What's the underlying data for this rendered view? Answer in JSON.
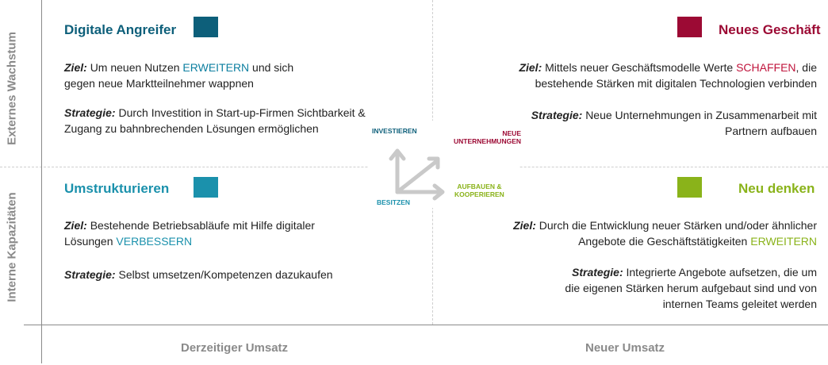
{
  "colors": {
    "teal_dark": "#0d5f7a",
    "red": "#9c0a34",
    "teal_light": "#1b91ac",
    "green": "#8ab31a",
    "axis_text": "#8a8a8a",
    "arrow": "#c9c9c9"
  },
  "axes": {
    "y_top": "Externes Wachstum",
    "y_bottom": "Interne Kapazitäten",
    "x_left": "Derzeitiger Umsatz",
    "x_right": "Neuer Umsatz"
  },
  "quadrants": {
    "top_left": {
      "title": "Digitale Angreifer",
      "goal_label": "Ziel",
      "goal_a": "Um neuen Nutzen ",
      "goal_hl": "ERWEITERN",
      "goal_b": " und sich gegen neue Marktteilnehmer wappnen",
      "strategy_label": "Strategie",
      "strategy_text": "Durch Investition in Start-up-Firmen Sichtbarkeit & Zugang zu bahnbrechenden Lösungen ermöglichen"
    },
    "top_right": {
      "title": "Neues Geschäft",
      "goal_label": "Ziel",
      "goal_a": "Mittels neuer Geschäftsmodelle Werte ",
      "goal_hl": "SCHAFFEN",
      "goal_b": ", die bestehende Stärken mit digitalen Technologien verbinden",
      "strategy_label": "Strategie",
      "strategy_text": "Neue Unternehmungen in Zusammenarbeit mit Partnern aufbauen"
    },
    "bottom_left": {
      "title": "Umstrukturieren",
      "goal_label": "Ziel",
      "goal_a": "Bestehende Betriebsabläufe mit Hilfe digitaler Lösungen ",
      "goal_hl": "VERBESSERN",
      "goal_b": "",
      "strategy_label": "Strategie",
      "strategy_text": "Selbst umsetzen/Kompetenzen dazukaufen"
    },
    "bottom_right": {
      "title": "Neu denken",
      "goal_label": "Ziel",
      "goal_a": "Durch die Entwicklung neuer Stärken und/oder ähnlicher Angebote die Geschäftstätigkeiten ",
      "goal_hl": "ERWEITERN",
      "goal_b": "",
      "strategy_label": "Strategie",
      "strategy_text": "Integrierte Angebote aufsetzen, die um die eigenen Stärken herum aufgebaut sind und von internen Teams geleitet werden"
    }
  },
  "center": {
    "investieren": "INVESTIEREN",
    "neue_line1": "NEUE",
    "neue_line2": "UNTERNEHMUNGEN",
    "aufbauen_line1": "AUFBAUEN &",
    "aufbauen_line2": "KOOPERIEREN",
    "besitzen": "BESITZEN"
  }
}
